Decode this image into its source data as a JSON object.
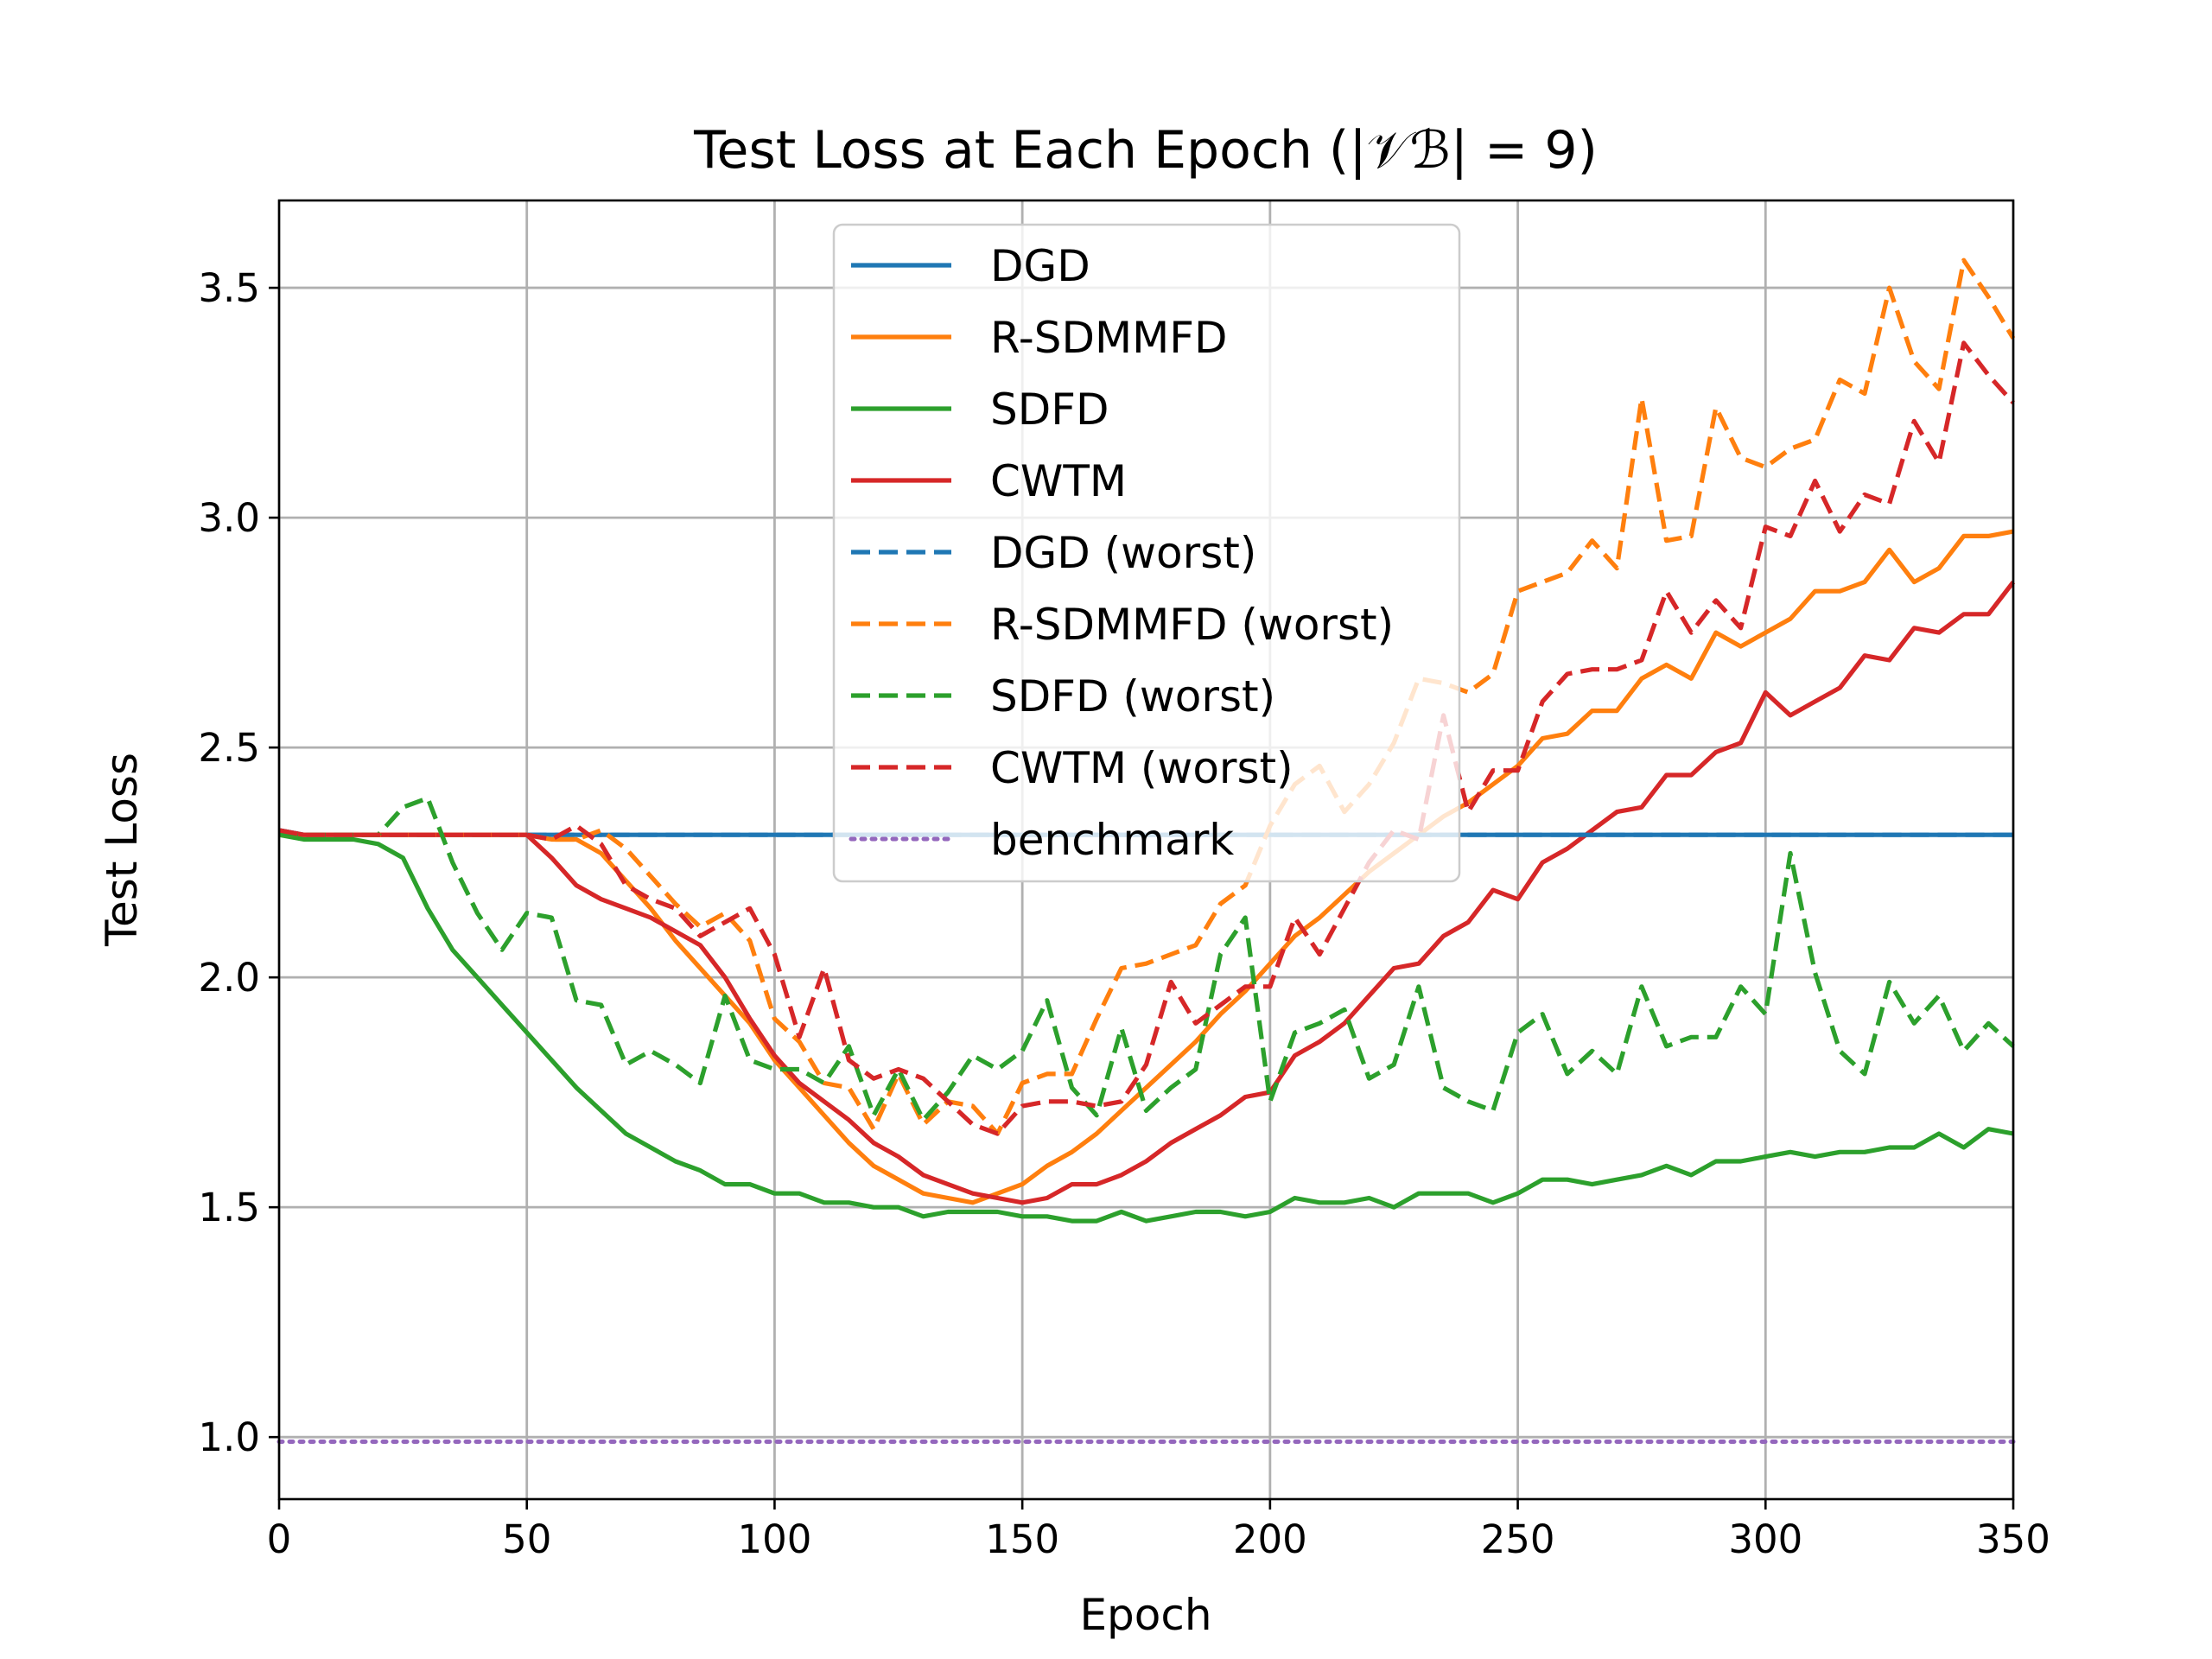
{
  "chart_data": {
    "type": "line",
    "title": "Test Loss at Each Epoch (|𝒱ℬ| = 9)",
    "xlabel": "Epoch",
    "ylabel": "Test Loss",
    "xlim": [
      0,
      350
    ],
    "ylim": [
      0.865,
      3.69
    ],
    "xticks": [
      0,
      50,
      100,
      150,
      200,
      250,
      300,
      350
    ],
    "yticks": [
      1.0,
      1.5,
      2.0,
      2.5,
      3.0,
      3.5
    ],
    "xtick_labels": [
      "0",
      "50",
      "100",
      "150",
      "200",
      "250",
      "300",
      "350"
    ],
    "ytick_labels": [
      "1.0",
      "1.5",
      "2.0",
      "2.5",
      "3.0",
      "3.5"
    ],
    "grid": true,
    "legend_position": "top-center",
    "x": [
      0,
      5,
      10,
      15,
      20,
      25,
      30,
      35,
      40,
      45,
      50,
      55,
      60,
      65,
      70,
      75,
      80,
      85,
      90,
      95,
      100,
      105,
      110,
      115,
      120,
      125,
      130,
      135,
      140,
      145,
      150,
      155,
      160,
      165,
      170,
      175,
      180,
      185,
      190,
      195,
      200,
      205,
      210,
      215,
      220,
      225,
      230,
      235,
      240,
      245,
      250,
      255,
      260,
      265,
      270,
      275,
      280,
      285,
      290,
      295,
      300,
      305,
      310,
      315,
      320,
      325,
      330,
      335,
      340,
      345,
      350
    ],
    "series": [
      {
        "name": "DGD",
        "color": "#1f77b4",
        "style": "solid",
        "values": [
          2.32,
          2.31,
          2.31,
          2.31,
          2.31,
          2.31,
          2.31,
          2.31,
          2.31,
          2.31,
          2.31,
          2.31,
          2.31,
          2.31,
          2.31,
          2.31,
          2.31,
          2.31,
          2.31,
          2.31,
          2.31,
          2.31,
          2.31,
          2.31,
          2.31,
          2.31,
          2.31,
          2.31,
          2.31,
          2.31,
          2.31,
          2.31,
          2.31,
          2.31,
          2.31,
          2.31,
          2.31,
          2.31,
          2.31,
          2.31,
          2.31,
          2.31,
          2.31,
          2.31,
          2.31,
          2.31,
          2.31,
          2.31,
          2.31,
          2.31,
          2.31,
          2.31,
          2.31,
          2.31,
          2.31,
          2.31,
          2.31,
          2.31,
          2.31,
          2.31,
          2.31,
          2.31,
          2.31,
          2.31,
          2.31,
          2.31,
          2.31,
          2.31,
          2.31,
          2.31,
          2.31
        ]
      },
      {
        "name": "R-SDMMFD",
        "color": "#ff7f0e",
        "style": "solid",
        "values": [
          2.31,
          2.31,
          2.31,
          2.31,
          2.31,
          2.31,
          2.31,
          2.31,
          2.31,
          2.31,
          2.31,
          2.3,
          2.3,
          2.27,
          2.21,
          2.15,
          2.08,
          2.02,
          1.96,
          1.9,
          1.82,
          1.76,
          1.7,
          1.64,
          1.59,
          1.56,
          1.53,
          1.52,
          1.51,
          1.53,
          1.55,
          1.59,
          1.62,
          1.66,
          1.71,
          1.76,
          1.81,
          1.86,
          1.92,
          1.97,
          2.03,
          2.09,
          2.13,
          2.18,
          2.23,
          2.27,
          2.31,
          2.35,
          2.38,
          2.42,
          2.46,
          2.52,
          2.53,
          2.58,
          2.58,
          2.65,
          2.68,
          2.65,
          2.75,
          2.72,
          2.75,
          2.78,
          2.84,
          2.84,
          2.86,
          2.93,
          2.86,
          2.89,
          2.96,
          2.96,
          2.97
        ]
      },
      {
        "name": "SDFD",
        "color": "#2ca02c",
        "style": "solid",
        "values": [
          2.31,
          2.3,
          2.3,
          2.3,
          2.29,
          2.26,
          2.15,
          2.06,
          2.0,
          1.94,
          1.88,
          1.82,
          1.76,
          1.71,
          1.66,
          1.63,
          1.6,
          1.58,
          1.55,
          1.55,
          1.53,
          1.53,
          1.51,
          1.51,
          1.5,
          1.5,
          1.48,
          1.49,
          1.49,
          1.49,
          1.48,
          1.48,
          1.47,
          1.47,
          1.49,
          1.47,
          1.48,
          1.49,
          1.49,
          1.48,
          1.49,
          1.52,
          1.51,
          1.51,
          1.52,
          1.5,
          1.53,
          1.53,
          1.53,
          1.51,
          1.53,
          1.56,
          1.56,
          1.55,
          1.56,
          1.57,
          1.59,
          1.57,
          1.6,
          1.6,
          1.61,
          1.62,
          1.61,
          1.62,
          1.62,
          1.63,
          1.63,
          1.66,
          1.63,
          1.67,
          1.66
        ]
      },
      {
        "name": "CWTM",
        "color": "#d62728",
        "style": "solid",
        "values": [
          2.32,
          2.31,
          2.31,
          2.31,
          2.31,
          2.31,
          2.31,
          2.31,
          2.31,
          2.31,
          2.31,
          2.26,
          2.2,
          2.17,
          2.15,
          2.13,
          2.1,
          2.07,
          2.0,
          1.91,
          1.83,
          1.77,
          1.73,
          1.69,
          1.64,
          1.61,
          1.57,
          1.55,
          1.53,
          1.52,
          1.51,
          1.52,
          1.55,
          1.55,
          1.57,
          1.6,
          1.64,
          1.67,
          1.7,
          1.74,
          1.75,
          1.83,
          1.86,
          1.9,
          1.96,
          2.02,
          2.03,
          2.09,
          2.12,
          2.19,
          2.17,
          2.25,
          2.28,
          2.32,
          2.36,
          2.37,
          2.44,
          2.44,
          2.49,
          2.51,
          2.62,
          2.57,
          2.6,
          2.63,
          2.7,
          2.69,
          2.76,
          2.75,
          2.79,
          2.79,
          2.86
        ]
      },
      {
        "name": "DGD (worst)",
        "color": "#1f77b4",
        "style": "dashed",
        "values": [
          2.32,
          2.31,
          2.31,
          2.31,
          2.31,
          2.31,
          2.31,
          2.31,
          2.31,
          2.31,
          2.31,
          2.31,
          2.31,
          2.31,
          2.31,
          2.31,
          2.31,
          2.31,
          2.31,
          2.31,
          2.31,
          2.31,
          2.31,
          2.31,
          2.31,
          2.31,
          2.31,
          2.31,
          2.31,
          2.31,
          2.31,
          2.31,
          2.31,
          2.31,
          2.31,
          2.31,
          2.31,
          2.31,
          2.31,
          2.31,
          2.31,
          2.31,
          2.31,
          2.31,
          2.31,
          2.31,
          2.31,
          2.31,
          2.31,
          2.31,
          2.31,
          2.31,
          2.31,
          2.31,
          2.31,
          2.31,
          2.31,
          2.31,
          2.31,
          2.31,
          2.31,
          2.31,
          2.31,
          2.31,
          2.31,
          2.31,
          2.31,
          2.31,
          2.31,
          2.31,
          2.31
        ]
      },
      {
        "name": "R-SDMMFD (worst)",
        "color": "#ff7f0e",
        "style": "dashed",
        "values": [
          2.31,
          2.31,
          2.31,
          2.31,
          2.31,
          2.31,
          2.31,
          2.31,
          2.31,
          2.31,
          2.31,
          2.3,
          2.3,
          2.32,
          2.28,
          2.22,
          2.16,
          2.11,
          2.14,
          2.08,
          1.91,
          1.86,
          1.77,
          1.76,
          1.67,
          1.79,
          1.68,
          1.73,
          1.72,
          1.66,
          1.77,
          1.79,
          1.79,
          1.91,
          2.02,
          2.03,
          2.05,
          2.07,
          2.16,
          2.2,
          2.33,
          2.42,
          2.46,
          2.36,
          2.42,
          2.51,
          2.65,
          2.64,
          2.62,
          2.66,
          2.84,
          2.86,
          2.88,
          2.95,
          2.89,
          3.26,
          2.95,
          2.96,
          3.24,
          3.13,
          3.11,
          3.15,
          3.17,
          3.3,
          3.27,
          3.5,
          3.34,
          3.28,
          3.56,
          3.48,
          3.39
        ]
      },
      {
        "name": "SDFD (worst)",
        "color": "#2ca02c",
        "style": "dashed",
        "values": [
          2.31,
          2.31,
          2.31,
          2.31,
          2.31,
          2.37,
          2.39,
          2.25,
          2.14,
          2.06,
          2.14,
          2.13,
          1.95,
          1.94,
          1.81,
          1.84,
          1.81,
          1.77,
          1.96,
          1.82,
          1.8,
          1.8,
          1.77,
          1.85,
          1.7,
          1.8,
          1.69,
          1.75,
          1.83,
          1.8,
          1.84,
          1.95,
          1.76,
          1.7,
          1.89,
          1.71,
          1.76,
          1.8,
          2.05,
          2.13,
          1.73,
          1.88,
          1.9,
          1.93,
          1.78,
          1.81,
          1.98,
          1.76,
          1.73,
          1.71,
          1.88,
          1.92,
          1.79,
          1.84,
          1.79,
          1.98,
          1.85,
          1.87,
          1.87,
          1.98,
          1.92,
          2.27,
          2.01,
          1.84,
          1.79,
          1.99,
          1.9,
          1.96,
          1.84,
          1.9,
          1.85
        ]
      },
      {
        "name": "CWTM (worst)",
        "color": "#d62728",
        "style": "dashed",
        "values": [
          2.32,
          2.31,
          2.31,
          2.31,
          2.31,
          2.31,
          2.31,
          2.31,
          2.31,
          2.31,
          2.31,
          2.3,
          2.33,
          2.29,
          2.2,
          2.17,
          2.15,
          2.09,
          2.12,
          2.15,
          2.05,
          1.87,
          2.02,
          1.82,
          1.78,
          1.8,
          1.78,
          1.73,
          1.68,
          1.66,
          1.72,
          1.73,
          1.73,
          1.72,
          1.73,
          1.81,
          1.99,
          1.9,
          1.94,
          1.98,
          1.98,
          2.13,
          2.05,
          2.15,
          2.25,
          2.32,
          2.3,
          2.57,
          2.36,
          2.45,
          2.45,
          2.6,
          2.66,
          2.67,
          2.67,
          2.69,
          2.84,
          2.75,
          2.82,
          2.76,
          2.98,
          2.96,
          3.08,
          2.97,
          3.05,
          3.03,
          3.21,
          3.12,
          3.38,
          3.31,
          3.25
        ]
      },
      {
        "name": "benchmark",
        "color": "#9467bd",
        "style": "dotted",
        "values": [
          0.99,
          0.99,
          0.99,
          0.99,
          0.99,
          0.99,
          0.99,
          0.99,
          0.99,
          0.99,
          0.99,
          0.99,
          0.99,
          0.99,
          0.99,
          0.99,
          0.99,
          0.99,
          0.99,
          0.99,
          0.99,
          0.99,
          0.99,
          0.99,
          0.99,
          0.99,
          0.99,
          0.99,
          0.99,
          0.99,
          0.99,
          0.99,
          0.99,
          0.99,
          0.99,
          0.99,
          0.99,
          0.99,
          0.99,
          0.99,
          0.99,
          0.99,
          0.99,
          0.99,
          0.99,
          0.99,
          0.99,
          0.99,
          0.99,
          0.99,
          0.99,
          0.99,
          0.99,
          0.99,
          0.99,
          0.99,
          0.99,
          0.99,
          0.99,
          0.99,
          0.99,
          0.99,
          0.99,
          0.99,
          0.99,
          0.99,
          0.99,
          0.99,
          0.99,
          0.99,
          0.99
        ]
      }
    ]
  }
}
